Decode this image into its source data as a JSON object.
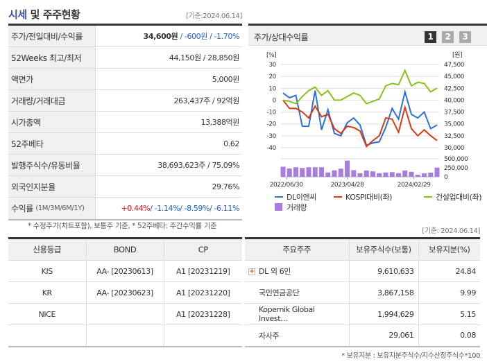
{
  "header": {
    "title_part1": "시세",
    "title_part2": " 및 주주현황",
    "as_of": "[기준:2024.06.14]"
  },
  "price_table": [
    {
      "label": "주가/전일대비/수익률",
      "price": "34,600원",
      "sep": " / ",
      "change": "-600원",
      "sep2": " / ",
      "rate": "-1.70%"
    },
    {
      "label": "52Weeks 최고/최저",
      "value": "44,150원 / 28,850원"
    },
    {
      "label": "액면가",
      "value": "5,000원"
    },
    {
      "label": "거래량/거래대금",
      "value": "263,437주 / 92억원"
    },
    {
      "label": "시가총액",
      "value": "13,388억원"
    },
    {
      "label": "52주베타",
      "value": "0.62"
    },
    {
      "label": "발행주식수/유동비율",
      "value": "38,693,623주 / 75.09%"
    },
    {
      "label": "외국인지분율",
      "value": "29.76%"
    },
    {
      "label": "수익률",
      "label_sub": "(1M/3M/6M/1Y)",
      "r1": "+0.44%",
      "r2": "/ -1.14%",
      "r3": "/ -8.59%",
      "r4": "/ -6.11%"
    }
  ],
  "price_note": "* 수정주가(차트포함), 보통주 기준, * 52주베타: 주간수익률 기준",
  "chart_panel": {
    "title": "주가/상대수익률",
    "pages": [
      "1",
      "2",
      "3"
    ],
    "active_page": "1"
  },
  "chart_data": {
    "type": "line",
    "left_unit": "[%]",
    "right_unit": "[원]",
    "left_ticks": [
      "30",
      "20",
      "10",
      "0",
      "-10",
      "-20",
      "-30",
      "-40"
    ],
    "right_ticks": [
      "47,500",
      "45,000",
      "42,500",
      "40,000",
      "37,500",
      "35,000",
      "32,500",
      "30,000"
    ],
    "volume_ticks": [
      "500,000",
      "250,000",
      "0"
    ],
    "ylim_left": [
      -40,
      30
    ],
    "x_ticks": [
      {
        "label": "2022/06/30",
        "index": 0.5
      },
      {
        "label": "2023/04/28",
        "index": 10
      },
      {
        "label": "2024/02/29",
        "index": 20.4
      }
    ],
    "series": [
      {
        "name": "DL이앤씨",
        "color": "#2a6fdb",
        "values": [
          6,
          2,
          4,
          -22,
          -22,
          8,
          -25,
          -8,
          -28,
          -30,
          -19,
          -15,
          -21,
          -38,
          -36,
          -35,
          -23,
          -7,
          -16,
          7,
          -12,
          -15,
          -10,
          -24,
          -21
        ]
      },
      {
        "name": "KOSPI대비(좌)",
        "color": "#d83a12",
        "values": [
          0,
          -7,
          -7,
          -10,
          -15,
          -5,
          -14,
          -12,
          -24,
          -28,
          -22,
          -23,
          -26,
          -39,
          -34,
          -30,
          -15,
          -16,
          -27,
          -6,
          -24,
          -30,
          -25,
          -30,
          -34
        ]
      },
      {
        "name": "건설업대비(좌)",
        "color": "#86c21a",
        "values": [
          0,
          -1,
          -3,
          3,
          8,
          11,
          4,
          8,
          0,
          0,
          3,
          6,
          4,
          -3,
          -1,
          1,
          12,
          14,
          13,
          25,
          12,
          15,
          14,
          7,
          10
        ]
      }
    ],
    "volume": {
      "name": "거래량",
      "color": "#a87de0",
      "values": [
        280000,
        230000,
        265000,
        245000,
        265000,
        265000,
        265000,
        120000,
        180000,
        225000,
        450000,
        185000,
        100000,
        175000,
        150000,
        100000,
        120000,
        130000,
        100000,
        175000,
        140000,
        60000,
        95000,
        115000,
        255000
      ],
      "ylim": [
        0,
        500000
      ]
    }
  },
  "credit": {
    "headers": [
      "신용등급",
      "BOND",
      "CP"
    ],
    "rows": [
      [
        "KIS",
        "AA-  [20230613]",
        "A1  [20231219]"
      ],
      [
        "KR",
        "AA-  [20230623]",
        "A1  [20231220]"
      ],
      [
        "NICE",
        "",
        "A1  [20231228]"
      ],
      [
        "",
        "",
        ""
      ]
    ]
  },
  "holders": {
    "as_of": "[기준: 2024.06.14]",
    "headers": [
      "주요주주",
      "보유주식수(보통)",
      "보유지분(%)"
    ],
    "rows": [
      [
        "DL 외 6인",
        "9,610,633",
        "24.84"
      ],
      [
        "국민연금공단",
        "3,867,158",
        "9.99"
      ],
      [
        "Kopernik Global Invest…",
        "1,994,629",
        "5.15"
      ],
      [
        "자사주",
        "29,061",
        "0.08"
      ]
    ],
    "note": "* 보유지분 : 보유지분주식수/지수산정주식수*100"
  }
}
